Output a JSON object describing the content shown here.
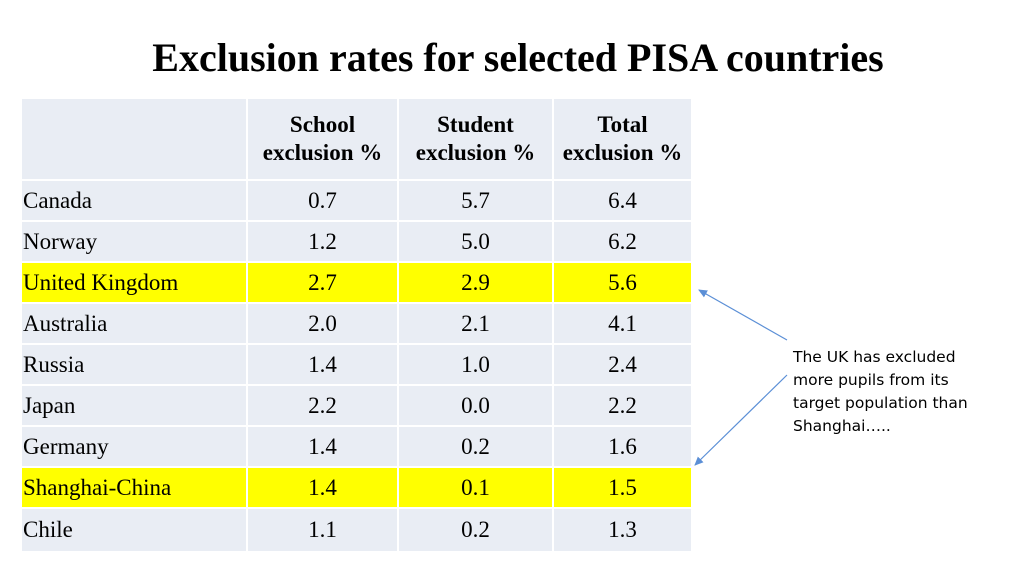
{
  "title": "Exclusion rates for selected PISA countries",
  "table": {
    "headers": [
      "",
      "School exclusion %",
      "Student exclusion %",
      "Total exclusion %"
    ],
    "rows": [
      {
        "country": "Canada",
        "school": "0.7",
        "student": "5.7",
        "total": "6.4",
        "highlight": false
      },
      {
        "country": "Norway",
        "school": "1.2",
        "student": "5.0",
        "total": "6.2",
        "highlight": false
      },
      {
        "country": "United Kingdom",
        "school": "2.7",
        "student": "2.9",
        "total": "5.6",
        "highlight": true
      },
      {
        "country": "Australia",
        "school": "2.0",
        "student": "2.1",
        "total": "4.1",
        "highlight": false
      },
      {
        "country": "Russia",
        "school": "1.4",
        "student": "1.0",
        "total": "2.4",
        "highlight": false
      },
      {
        "country": "Japan",
        "school": "2.2",
        "student": "0.0",
        "total": "2.2",
        "highlight": false
      },
      {
        "country": "Germany",
        "school": "1.4",
        "student": "0.2",
        "total": "1.6",
        "highlight": false
      },
      {
        "country": "Shanghai-China",
        "school": "1.4",
        "student": "0.1",
        "total": "1.5",
        "highlight": true
      },
      {
        "country": "Chile",
        "school": "1.1",
        "student": "0.2",
        "total": "1.3",
        "highlight": false
      }
    ]
  },
  "callout": "The UK has excluded more pupils from its target population than Shanghai…..",
  "colors": {
    "highlight": "#ffff00",
    "cell": "#e9edf4",
    "arrow": "#5b8fd6"
  }
}
